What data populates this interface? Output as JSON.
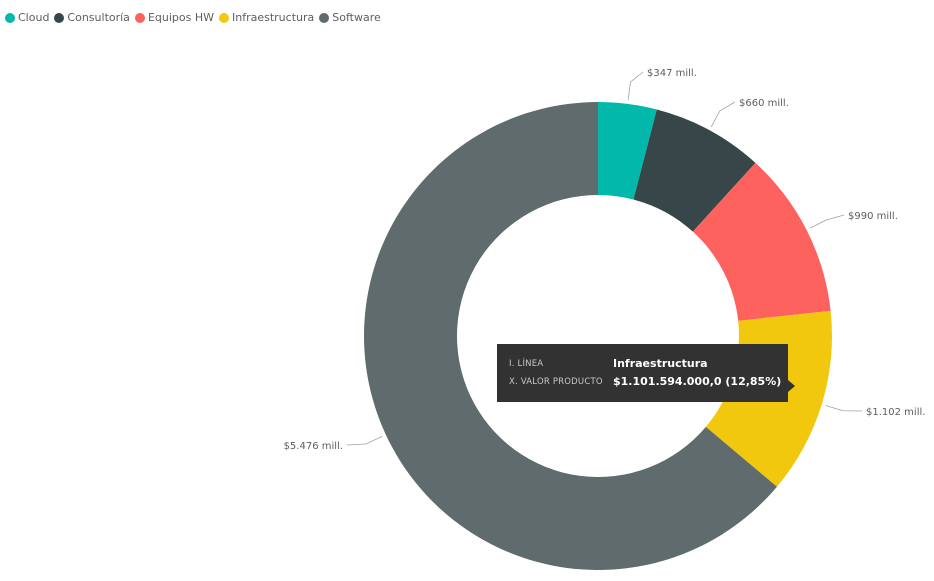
{
  "legend": {
    "items": [
      {
        "label": "Cloud",
        "color": "#01B8AA"
      },
      {
        "label": "Consultoría",
        "color": "#374649"
      },
      {
        "label": "Equipos HW",
        "color": "#FD625E"
      },
      {
        "label": "Infraestructura",
        "color": "#F2C80F"
      },
      {
        "label": "Software",
        "color": "#5F6B6D"
      }
    ]
  },
  "chart_data": {
    "type": "pie",
    "donut": true,
    "categories": [
      "Cloud",
      "Consultoría",
      "Equipos HW",
      "Infraestructura",
      "Software"
    ],
    "values": [
      347,
      660,
      990,
      1102,
      5476
    ],
    "value_unit": "mill.",
    "data_labels": [
      "$347 mill.",
      "$660 mill.",
      "$990 mill.",
      "$1.102 mill.",
      "$5.476 mill."
    ],
    "colors": [
      "#01B8AA",
      "#374649",
      "#FD625E",
      "#F2C80F",
      "#5F6B6D"
    ],
    "legend_position": "top-left",
    "title": ""
  },
  "tooltip": {
    "rows": [
      {
        "key": "I. LÍNEA",
        "value": "Infraestructura"
      },
      {
        "key": "X. VALOR PRODUCTO",
        "value": "$1.101.594.000,0 (12,85%)"
      }
    ]
  }
}
